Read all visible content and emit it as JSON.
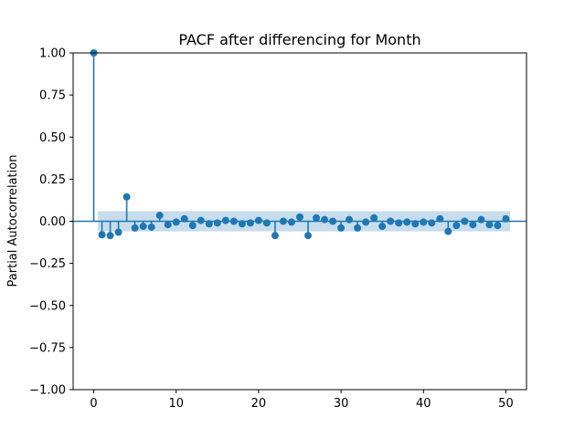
{
  "chart_data": {
    "type": "stem",
    "title": "PACF after differencing for Month",
    "xlabel": "",
    "ylabel": "Partial Autocorrelation",
    "xlim": [
      -2.5,
      52.5
    ],
    "ylim": [
      -1.0,
      1.0
    ],
    "xticks": [
      0,
      10,
      20,
      30,
      40,
      50
    ],
    "yticks": [
      -1.0,
      -0.75,
      -0.5,
      -0.25,
      0.0,
      0.25,
      0.5,
      0.75,
      1.0
    ],
    "xtick_labels": [
      "0",
      "10",
      "20",
      "30",
      "40",
      "50"
    ],
    "ytick_labels": [
      "−1.00",
      "−0.75",
      "−0.50",
      "−0.25",
      "0.00",
      "0.25",
      "0.50",
      "0.75",
      "1.00"
    ],
    "grid": false,
    "confidence_band": {
      "lower": -0.06,
      "upper": 0.06,
      "from_lag": 0.5,
      "to_lag": 50.5
    },
    "lags": [
      0,
      1,
      2,
      3,
      4,
      5,
      6,
      7,
      8,
      9,
      10,
      11,
      12,
      13,
      14,
      15,
      16,
      17,
      18,
      19,
      20,
      21,
      22,
      23,
      24,
      25,
      26,
      27,
      28,
      29,
      30,
      31,
      32,
      33,
      34,
      35,
      36,
      37,
      38,
      39,
      40,
      41,
      42,
      43,
      44,
      45,
      46,
      47,
      48,
      49,
      50
    ],
    "values": [
      1.0,
      -0.08,
      -0.085,
      -0.065,
      0.145,
      -0.04,
      -0.03,
      -0.035,
      0.035,
      -0.02,
      -0.005,
      0.015,
      -0.025,
      0.005,
      -0.015,
      -0.01,
      0.005,
      0.0,
      -0.015,
      -0.01,
      0.005,
      -0.01,
      -0.085,
      0.0,
      -0.005,
      0.025,
      -0.085,
      0.02,
      0.01,
      0.0,
      -0.04,
      0.01,
      -0.04,
      -0.005,
      0.02,
      -0.03,
      0.0,
      -0.01,
      -0.005,
      -0.015,
      -0.005,
      -0.01,
      0.015,
      -0.06,
      -0.025,
      0.0,
      -0.02,
      0.01,
      -0.02,
      -0.025,
      0.015
    ],
    "colors": {
      "stem": "#1f77b4",
      "marker": "#1f77b4",
      "band": "#1f77b4",
      "zero_line": "#1f77b4",
      "axes": "#000000"
    }
  }
}
